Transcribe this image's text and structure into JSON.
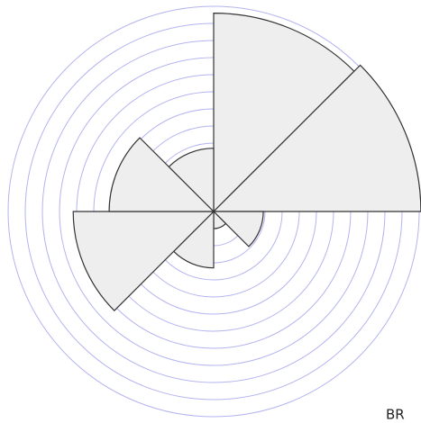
{
  "chart_data": {
    "type": "polar_area",
    "values": [
      11.6,
      12.1,
      2.9,
      1.0,
      3.3,
      8.2,
      6.1,
      3.7
    ],
    "rlim": [
      0,
      12
    ],
    "rticks": [
      1,
      2,
      3,
      4,
      5,
      6,
      7,
      8,
      9,
      10,
      11,
      12
    ],
    "grid": true,
    "color": "#eeeeee",
    "grid_color": "#b4b4f0",
    "annotation": "BR"
  }
}
